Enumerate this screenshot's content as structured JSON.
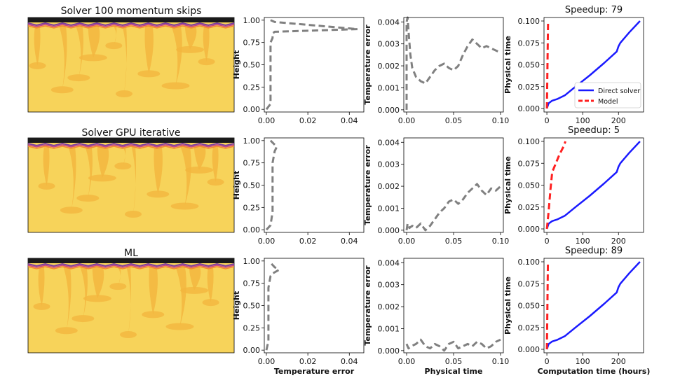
{
  "figure": {
    "row_titles": [
      "Solver 100 momentum skips",
      "Solver GPU iterative",
      "ML"
    ],
    "speedup_prefix": "Speedup: ",
    "speedups": [
      "79",
      "5",
      "89"
    ],
    "bottom_xlabels": {
      "height_error": "Temperature error",
      "temp_error": "Physical time",
      "physical_time": "Computation time (hours)"
    },
    "ylabels": {
      "height_error": "Height",
      "temp_error": "Temperature error",
      "physical_time": "Physical time"
    },
    "legend": {
      "direct": "Direct solver",
      "model": "Model"
    }
  },
  "chart_data": [
    {
      "type": "line",
      "panel": "height-error",
      "row": 0,
      "xlabel": "",
      "ylabel": "Height",
      "xlim": [
        -0.001,
        0.047
      ],
      "ylim": [
        -0.03,
        1.03
      ],
      "xticks": [
        "0.00",
        "0.02",
        "0.04"
      ],
      "xtick_values": [
        0,
        0.02,
        0.04
      ],
      "yticks": [
        "0.00",
        "0.25",
        "0.50",
        "0.75",
        "1.00"
      ],
      "ytick_values": [
        0,
        0.25,
        0.5,
        0.75,
        1.0
      ],
      "series": [
        {
          "style": "dashed",
          "color": "#808080",
          "x": [
            0.0,
            0.001,
            0.002,
            0.002,
            0.002,
            0.002,
            0.003,
            0.003,
            0.004,
            0.044,
            0.004,
            0.002
          ],
          "y": [
            0.0,
            0.03,
            0.06,
            0.3,
            0.55,
            0.75,
            0.8,
            0.85,
            0.87,
            0.9,
            0.98,
            1.0
          ]
        }
      ]
    },
    {
      "type": "line",
      "panel": "temp-error",
      "row": 0,
      "xlabel": "",
      "ylabel": "Temperature error",
      "xlim": [
        -0.003,
        0.103
      ],
      "ylim": [
        -0.0001,
        0.0042
      ],
      "xticks": [
        "0.00",
        "0.05",
        "0.10"
      ],
      "xtick_values": [
        0,
        0.05,
        0.1
      ],
      "yticks": [
        "0.000",
        "0.001",
        "0.002",
        "0.003",
        "0.004"
      ],
      "ytick_values": [
        0,
        0.001,
        0.002,
        0.003,
        0.004
      ],
      "series": [
        {
          "style": "dashed",
          "color": "#808080",
          "x": [
            0.0,
            0.0,
            0.001,
            0.002,
            0.004,
            0.006,
            0.01,
            0.015,
            0.02,
            0.025,
            0.03,
            0.035,
            0.04,
            0.045,
            0.05,
            0.055,
            0.06,
            0.065,
            0.07,
            0.075,
            0.08,
            0.085,
            0.09,
            0.095,
            0.1
          ],
          "y": [
            0.0,
            0.004,
            0.0042,
            0.0036,
            0.0025,
            0.0019,
            0.0015,
            0.0013,
            0.0012,
            0.0015,
            0.0018,
            0.002,
            0.0021,
            0.0019,
            0.0018,
            0.002,
            0.0025,
            0.0029,
            0.0032,
            0.003,
            0.0028,
            0.0029,
            0.0028,
            0.0027,
            0.0026
          ]
        }
      ]
    },
    {
      "type": "line",
      "panel": "physical-time",
      "row": 0,
      "xlabel": "",
      "ylabel": "Physical time",
      "title": "Speedup: 79",
      "xlim": [
        -8,
        270
      ],
      "ylim": [
        -0.004,
        0.104
      ],
      "xticks": [
        "0",
        "100",
        "200"
      ],
      "xtick_values": [
        0,
        100,
        200
      ],
      "yticks": [
        "0.000",
        "0.025",
        "0.050",
        "0.075",
        "0.100"
      ],
      "ytick_values": [
        0,
        0.025,
        0.05,
        0.075,
        0.1
      ],
      "legend_position": "lower-right",
      "series": [
        {
          "name": "Direct solver",
          "style": "solid",
          "color": "#1a1aff",
          "x": [
            0,
            5,
            15,
            30,
            50,
            80,
            120,
            160,
            195,
            200,
            205,
            230,
            260
          ],
          "y": [
            0,
            0.006,
            0.009,
            0.011,
            0.015,
            0.025,
            0.038,
            0.052,
            0.065,
            0.071,
            0.075,
            0.087,
            0.1
          ]
        },
        {
          "name": "Model",
          "style": "dashed",
          "color": "#ff2020",
          "x": [
            0,
            3.3
          ],
          "y": [
            0,
            0.1
          ]
        }
      ]
    },
    {
      "type": "line",
      "panel": "height-error",
      "row": 1,
      "xlabel": "",
      "ylabel": "Height",
      "xlim": [
        -0.001,
        0.047
      ],
      "ylim": [
        -0.03,
        1.03
      ],
      "xticks": [
        "0.00",
        "0.02",
        "0.04"
      ],
      "xtick_values": [
        0,
        0.02,
        0.04
      ],
      "yticks": [
        "0.00",
        "0.25",
        "0.50",
        "0.75",
        "1.00"
      ],
      "ytick_values": [
        0,
        0.25,
        0.5,
        0.75,
        1.0
      ],
      "series": [
        {
          "style": "dashed",
          "color": "#808080",
          "x": [
            0.0,
            0.002,
            0.003,
            0.003,
            0.003,
            0.004,
            0.005,
            0.002
          ],
          "y": [
            0.0,
            0.05,
            0.2,
            0.5,
            0.75,
            0.88,
            0.93,
            1.0
          ]
        }
      ]
    },
    {
      "type": "line",
      "panel": "temp-error",
      "row": 1,
      "xlabel": "",
      "ylabel": "Temperature error",
      "xlim": [
        -0.003,
        0.103
      ],
      "ylim": [
        -0.0001,
        0.0042
      ],
      "xticks": [
        "0.00",
        "0.05",
        "0.10"
      ],
      "xtick_values": [
        0,
        0.05,
        0.1
      ],
      "yticks": [
        "0.000",
        "0.001",
        "0.002",
        "0.003",
        "0.004"
      ],
      "ytick_values": [
        0,
        0.001,
        0.002,
        0.003,
        0.004
      ],
      "series": [
        {
          "style": "dashed",
          "color": "#808080",
          "x": [
            0.0,
            0.001,
            0.003,
            0.006,
            0.01,
            0.015,
            0.02,
            0.025,
            0.03,
            0.035,
            0.04,
            0.045,
            0.05,
            0.055,
            0.06,
            0.065,
            0.07,
            0.075,
            0.08,
            0.085,
            0.09,
            0.095,
            0.1
          ],
          "y": [
            0.0,
            0.0003,
            0.0001,
            0.0002,
            0.0001,
            0.0003,
            0.0,
            0.0002,
            0.0005,
            0.0008,
            0.001,
            0.0013,
            0.0014,
            0.0012,
            0.0014,
            0.0017,
            0.0019,
            0.0021,
            0.0018,
            0.0016,
            0.0019,
            0.0018,
            0.002
          ]
        }
      ]
    },
    {
      "type": "line",
      "panel": "physical-time",
      "row": 1,
      "xlabel": "",
      "ylabel": "Physical time",
      "title": "Speedup: 5",
      "xlim": [
        -8,
        270
      ],
      "ylim": [
        -0.004,
        0.104
      ],
      "xticks": [
        "0",
        "100",
        "200"
      ],
      "xtick_values": [
        0,
        100,
        200
      ],
      "yticks": [
        "0.000",
        "0.025",
        "0.050",
        "0.075",
        "0.100"
      ],
      "ytick_values": [
        0,
        0.025,
        0.05,
        0.075,
        0.1
      ],
      "series": [
        {
          "name": "Direct solver",
          "style": "solid",
          "color": "#1a1aff",
          "x": [
            0,
            5,
            15,
            30,
            50,
            80,
            120,
            160,
            195,
            200,
            205,
            230,
            260
          ],
          "y": [
            0,
            0.006,
            0.009,
            0.011,
            0.015,
            0.025,
            0.038,
            0.052,
            0.065,
            0.071,
            0.075,
            0.087,
            0.1
          ]
        },
        {
          "name": "Model",
          "style": "dashed",
          "color": "#ff2020",
          "x": [
            0,
            5,
            10,
            15,
            25,
            35,
            45,
            52
          ],
          "y": [
            0,
            0.02,
            0.045,
            0.065,
            0.075,
            0.085,
            0.093,
            0.1
          ]
        }
      ]
    },
    {
      "type": "line",
      "panel": "height-error",
      "row": 2,
      "xlabel": "Temperature error",
      "ylabel": "Height",
      "xlim": [
        -0.001,
        0.047
      ],
      "ylim": [
        -0.03,
        1.03
      ],
      "xticks": [
        "0.00",
        "0.02",
        "0.04"
      ],
      "xtick_values": [
        0,
        0.02,
        0.04
      ],
      "yticks": [
        "0.00",
        "0.25",
        "0.50",
        "0.75",
        "1.00"
      ],
      "ytick_values": [
        0,
        0.25,
        0.5,
        0.75,
        1.0
      ],
      "series": [
        {
          "style": "dashed",
          "color": "#808080",
          "x": [
            0.0,
            0.001,
            0.001,
            0.001,
            0.002,
            0.003,
            0.006,
            0.004,
            0.002
          ],
          "y": [
            0.0,
            0.1,
            0.4,
            0.7,
            0.83,
            0.86,
            0.9,
            0.93,
            0.98
          ]
        }
      ]
    },
    {
      "type": "line",
      "panel": "temp-error",
      "row": 2,
      "xlabel": "Physical time",
      "ylabel": "Temperature error",
      "xlim": [
        -0.003,
        0.103
      ],
      "ylim": [
        -0.0001,
        0.0042
      ],
      "xticks": [
        "0.00",
        "0.05",
        "0.10"
      ],
      "xtick_values": [
        0,
        0.05,
        0.1
      ],
      "yticks": [
        "0.000",
        "0.001",
        "0.002",
        "0.003",
        "0.004"
      ],
      "ytick_values": [
        0,
        0.001,
        0.002,
        0.003,
        0.004
      ],
      "series": [
        {
          "style": "dashed",
          "color": "#808080",
          "x": [
            0.0,
            0.002,
            0.005,
            0.01,
            0.015,
            0.02,
            0.025,
            0.03,
            0.035,
            0.04,
            0.045,
            0.05,
            0.055,
            0.06,
            0.065,
            0.07,
            0.075,
            0.08,
            0.085,
            0.09,
            0.095,
            0.1
          ],
          "y": [
            0.0003,
            0.0001,
            0.0002,
            0.0003,
            0.0005,
            0.0002,
            0.0001,
            0.0003,
            0.0002,
            0.0,
            0.0003,
            0.0004,
            0.0001,
            0.0002,
            0.0003,
            0.0002,
            0.0004,
            0.0003,
            0.0001,
            0.0002,
            0.0004,
            0.0005
          ]
        }
      ]
    },
    {
      "type": "line",
      "panel": "physical-time",
      "row": 2,
      "xlabel": "Computation time (hours)",
      "ylabel": "Physical time",
      "title": "Speedup: 89",
      "xlim": [
        -8,
        270
      ],
      "ylim": [
        -0.004,
        0.104
      ],
      "xticks": [
        "0",
        "100",
        "200"
      ],
      "xtick_values": [
        0,
        100,
        200
      ],
      "yticks": [
        "0.000",
        "0.025",
        "0.050",
        "0.075",
        "0.100"
      ],
      "ytick_values": [
        0,
        0.025,
        0.05,
        0.075,
        0.1
      ],
      "series": [
        {
          "name": "Direct solver",
          "style": "solid",
          "color": "#1a1aff",
          "x": [
            0,
            5,
            15,
            30,
            50,
            80,
            120,
            160,
            195,
            200,
            205,
            230,
            260
          ],
          "y": [
            0,
            0.006,
            0.009,
            0.011,
            0.015,
            0.025,
            0.038,
            0.052,
            0.065,
            0.071,
            0.075,
            0.087,
            0.1
          ]
        },
        {
          "name": "Model",
          "style": "dashed",
          "color": "#ff2020",
          "x": [
            0,
            2.9
          ],
          "y": [
            0,
            0.1
          ]
        }
      ]
    }
  ],
  "colors": {
    "field_fill": "#f7d35a",
    "field_plume": "#f3b63f",
    "layer_dark": "#1a1a1a",
    "layer_purple": "#7b3fa0",
    "layer_magenta": "#c9418a",
    "layer_orange": "#f28b30"
  }
}
